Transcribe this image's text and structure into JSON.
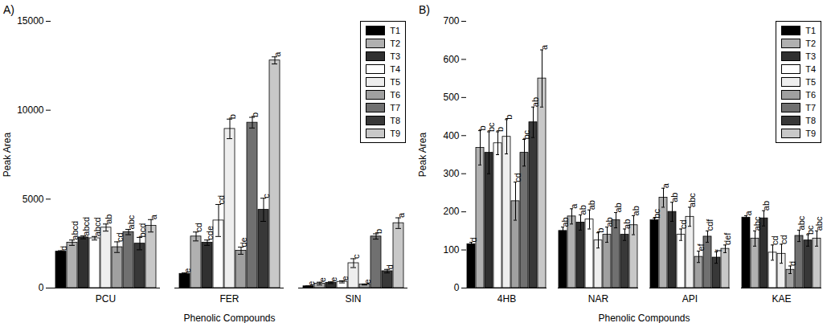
{
  "chart_data": [
    {
      "type": "bar",
      "title": "A)",
      "x_label": "Phenolic Compounds",
      "y_label": "Peak Area",
      "categories": [
        "PCU",
        "FER",
        "SIN"
      ],
      "ylim": [
        0,
        15000
      ],
      "yticks": [
        0,
        5000,
        10000,
        15000
      ],
      "legend": "top-right",
      "series": [
        {
          "name": "T1",
          "color": "#000000",
          "values": [
            2050,
            800,
            100
          ],
          "errors": [
            50,
            50,
            20
          ],
          "annotations": [
            "d",
            "e",
            "e"
          ]
        },
        {
          "name": "T2",
          "color": "#b0b0b0",
          "values": [
            2550,
            2900,
            250
          ],
          "errors": [
            150,
            250,
            80
          ],
          "annotations": [
            "abcd",
            "cd",
            "e"
          ]
        },
        {
          "name": "T3",
          "color": "#303030",
          "values": [
            2850,
            2550,
            300
          ],
          "errors": [
            80,
            150,
            50
          ],
          "annotations": [
            "abcd",
            "cde",
            "e"
          ]
        },
        {
          "name": "T4",
          "color": "#ffffff",
          "values": [
            2800,
            3800,
            350
          ],
          "errors": [
            100,
            900,
            60
          ],
          "annotations": [
            "abcd",
            "cd",
            "e"
          ]
        },
        {
          "name": "T5",
          "color": "#eeeeee",
          "values": [
            3400,
            8950,
            1400
          ],
          "errors": [
            200,
            550,
            250
          ],
          "annotations": [
            "ab",
            "b",
            "c"
          ]
        },
        {
          "name": "T6",
          "color": "#a0a0a0",
          "values": [
            2300,
            2100,
            200
          ],
          "errors": [
            300,
            200,
            30
          ],
          "annotations": [
            "cd",
            "de",
            "e"
          ]
        },
        {
          "name": "T7",
          "color": "#707070",
          "values": [
            3150,
            9300,
            2900
          ],
          "errors": [
            150,
            300,
            150
          ],
          "annotations": [
            "abc",
            "b",
            "b"
          ]
        },
        {
          "name": "T8",
          "color": "#383838",
          "values": [
            2500,
            4400,
            950
          ],
          "errors": [
            350,
            650,
            100
          ],
          "annotations": [
            "bcd",
            "c",
            "d"
          ]
        },
        {
          "name": "T9",
          "color": "#c8c8c8",
          "values": [
            3500,
            12800,
            3650
          ],
          "errors": [
            350,
            200,
            300
          ],
          "annotations": [
            "a",
            "a",
            "a"
          ]
        }
      ]
    },
    {
      "type": "bar",
      "title": "B)",
      "x_label": "Phenolic Compounds",
      "y_label": "Peak Area",
      "categories": [
        "4HB",
        "NAR",
        "API",
        "KAE"
      ],
      "ylim": [
        0,
        700
      ],
      "yticks": [
        0,
        100,
        200,
        300,
        400,
        500,
        600,
        700
      ],
      "legend": "top-right",
      "series": [
        {
          "name": "T1",
          "color": "#000000",
          "values": [
            115,
            150,
            178,
            185
          ],
          "errors": [
            5,
            10,
            5,
            5
          ],
          "annotations": [
            "d",
            "ab",
            "bc",
            "a"
          ]
        },
        {
          "name": "T2",
          "color": "#b0b0b0",
          "values": [
            368,
            188,
            237,
            130
          ],
          "errors": [
            45,
            20,
            25,
            20
          ],
          "annotations": [
            "b",
            "a",
            "a",
            "abc"
          ]
        },
        {
          "name": "T3",
          "color": "#303030",
          "values": [
            355,
            172,
            200,
            183
          ],
          "errors": [
            55,
            20,
            25,
            20
          ],
          "annotations": [
            "bc",
            "ab",
            "ab",
            "ab"
          ]
        },
        {
          "name": "T4",
          "color": "#ffffff",
          "values": [
            380,
            180,
            140,
            93
          ],
          "errors": [
            30,
            25,
            15,
            20
          ],
          "annotations": [
            "b",
            "ab",
            "cd",
            "cd"
          ]
        },
        {
          "name": "T5",
          "color": "#eeeeee",
          "values": [
            397,
            125,
            187,
            90
          ],
          "errors": [
            45,
            20,
            25,
            25
          ],
          "annotations": [
            "b",
            "b",
            "abc",
            "cd"
          ]
        },
        {
          "name": "T6",
          "color": "#a0a0a0",
          "values": [
            228,
            140,
            82,
            48
          ],
          "errors": [
            50,
            20,
            15,
            10
          ],
          "annotations": [
            "cd",
            "ab",
            "ef",
            "d"
          ]
        },
        {
          "name": "T7",
          "color": "#707070",
          "values": [
            355,
            178,
            135,
            137
          ],
          "errors": [
            35,
            20,
            15,
            15
          ],
          "annotations": [
            "bc",
            "ab",
            "cdf",
            "abc"
          ]
        },
        {
          "name": "T8",
          "color": "#383838",
          "values": [
            435,
            140,
            80,
            125
          ],
          "errors": [
            40,
            15,
            15,
            15
          ],
          "annotations": [
            "ab",
            "ab",
            "f",
            "bc"
          ]
        },
        {
          "name": "T9",
          "color": "#c8c8c8",
          "values": [
            550,
            165,
            103,
            130
          ],
          "errors": [
            75,
            25,
            10,
            20
          ],
          "annotations": [
            "a",
            "ab",
            "def",
            "abc"
          ]
        }
      ]
    }
  ]
}
